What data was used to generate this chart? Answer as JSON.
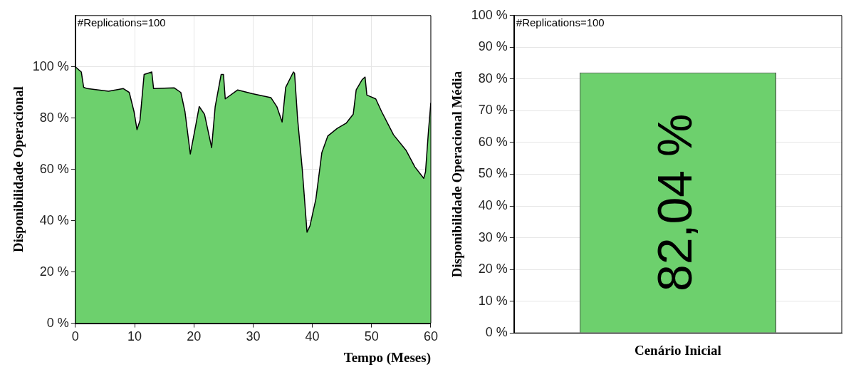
{
  "chart_data": [
    {
      "type": "area",
      "xlabel": "Tempo (Meses)",
      "ylabel": "Disponibilidade Operacional",
      "annotations": [
        "#Replications=100"
      ],
      "x": [
        0,
        1,
        1.4,
        2,
        5.6,
        8.1,
        9.1,
        9.9,
        10.4,
        10.9,
        11.6,
        12.9,
        13.2,
        16.7,
        17.8,
        18.5,
        19.4,
        20.3,
        20.9,
        21.8,
        23,
        23.6,
        24.6,
        25,
        25.3,
        27.4,
        29.9,
        33,
        34,
        34.9,
        35.5,
        36.8,
        37,
        37.5,
        38.3,
        39.1,
        39.6,
        40.6,
        41.6,
        42.6,
        44.2,
        45.7,
        46.9,
        47.4,
        48.4,
        48.9,
        49.2,
        50.7,
        51.7,
        53.7,
        55.8,
        57.3,
        58.8,
        59.1,
        59.6,
        60
      ],
      "series": [
        {
          "color": "#6dd06d",
          "values": [
            100,
            98,
            92,
            91.5,
            90.5,
            91.5,
            90,
            82.5,
            75.5,
            79,
            97,
            98,
            91.5,
            91.8,
            90,
            82.5,
            66,
            77,
            84.5,
            81.5,
            68.5,
            84.5,
            97,
            97,
            87.5,
            91,
            89.5,
            88,
            84.5,
            78.5,
            92,
            98,
            97.5,
            80,
            60,
            35.5,
            38,
            48.5,
            66.5,
            73,
            76,
            78,
            81.5,
            91,
            95,
            96,
            89,
            87.5,
            82.5,
            73.5,
            67.5,
            61,
            56.5,
            59,
            75,
            86
          ]
        }
      ],
      "xlim": [
        0,
        60
      ],
      "xticks": [
        0,
        10,
        20,
        30,
        40,
        50,
        60
      ],
      "ylim": [
        0,
        120
      ],
      "yticks": [
        {
          "value": 0,
          "label": "0 %"
        },
        {
          "value": 20,
          "label": "20 %"
        },
        {
          "value": 40,
          "label": "40 %"
        },
        {
          "value": 60,
          "label": "60 %"
        },
        {
          "value": 80,
          "label": "80 %"
        },
        {
          "value": 100,
          "label": "100 %"
        }
      ],
      "grid": true,
      "marker": "none",
      "line_style": "solid"
    },
    {
      "type": "bar",
      "ylabel": "Disponibilidade Operacional Média",
      "annotations": [
        "#Replications=100"
      ],
      "categories": [
        "Cenário Inicial"
      ],
      "values": [
        82.04
      ],
      "color": "#6dd06d",
      "value_labels": [
        "82,04 %"
      ],
      "ylim": [
        0,
        100
      ],
      "yticks": [
        {
          "value": 0,
          "label": "0 %"
        },
        {
          "value": 10,
          "label": "10 %"
        },
        {
          "value": 20,
          "label": "20 %"
        },
        {
          "value": 30,
          "label": "30 %"
        },
        {
          "value": 40,
          "label": "40 %"
        },
        {
          "value": 50,
          "label": "50 %"
        },
        {
          "value": 60,
          "label": "60 %"
        },
        {
          "value": 70,
          "label": "70 %"
        },
        {
          "value": 80,
          "label": "80 %"
        },
        {
          "value": 90,
          "label": "90 %"
        },
        {
          "value": 100,
          "label": "100 %"
        }
      ],
      "grid": "y"
    }
  ]
}
